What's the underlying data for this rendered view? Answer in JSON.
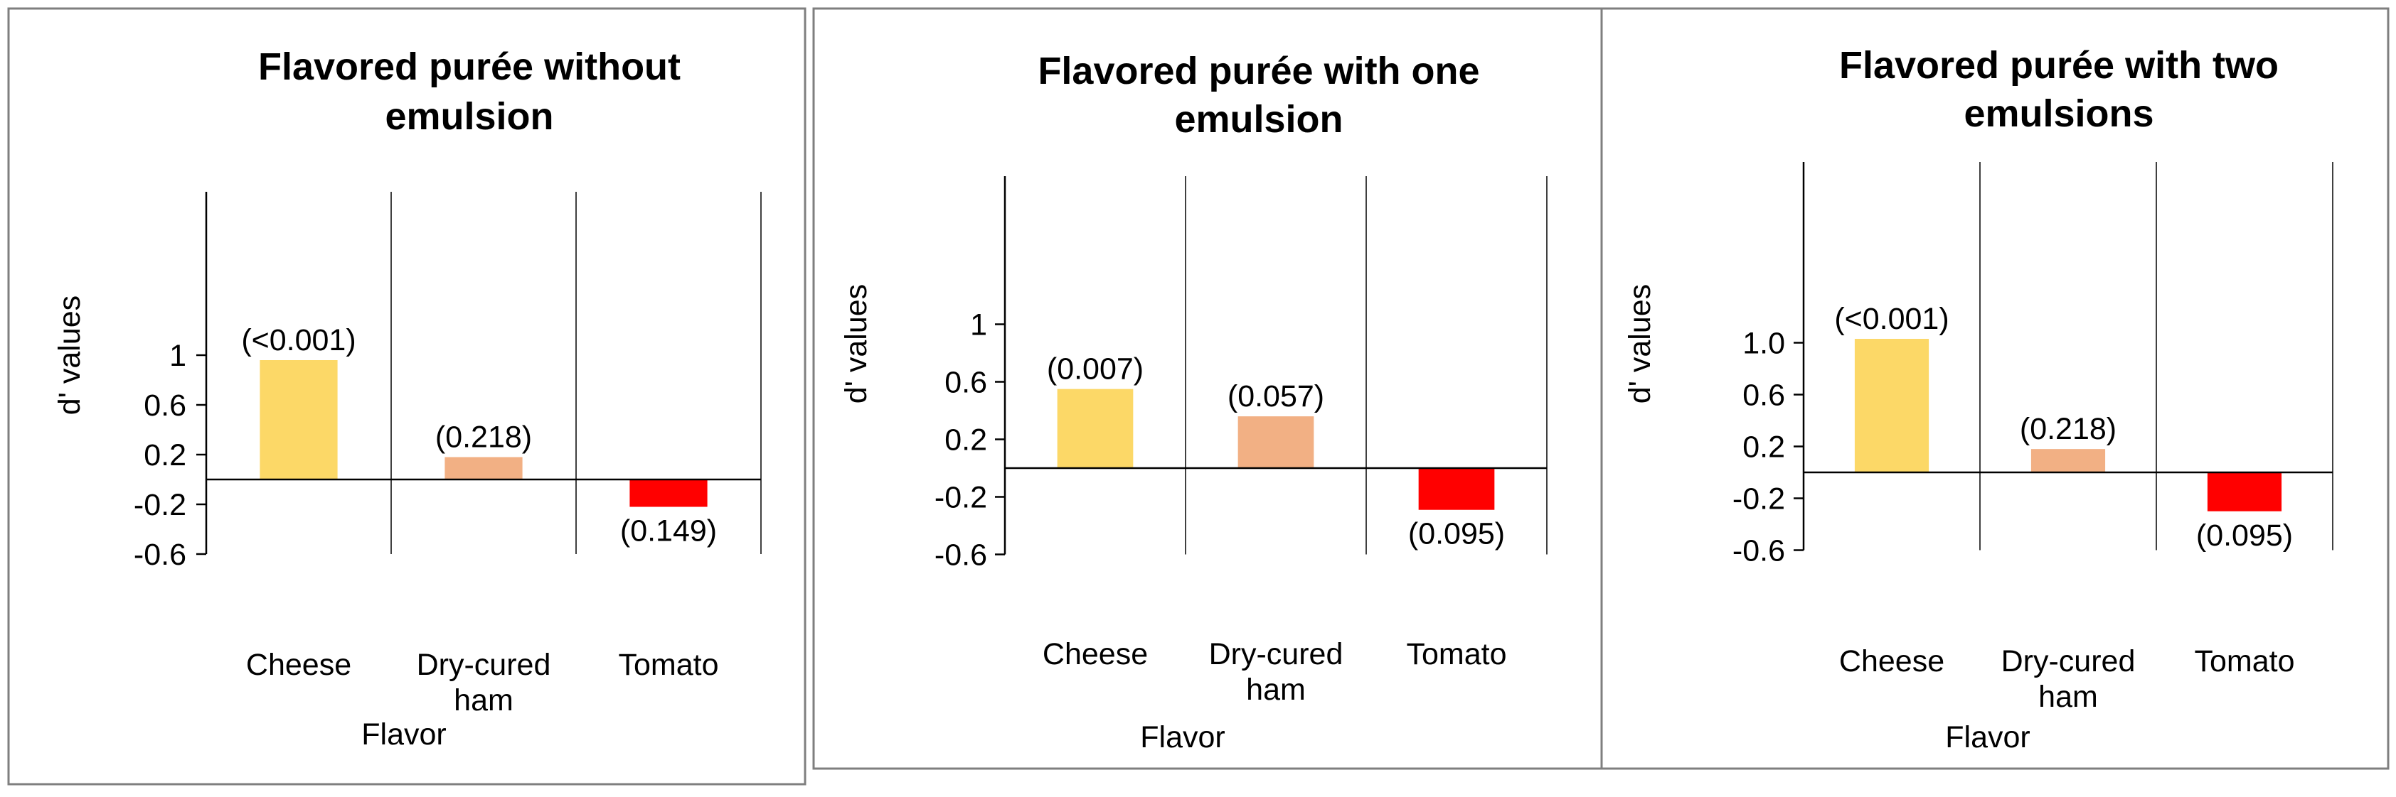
{
  "chart_data": [
    {
      "type": "bar",
      "title": "Flavored purée without emulsion",
      "title_lines": [
        "Flavored purée without",
        "emulsion"
      ],
      "xlabel": "Flavor",
      "ylabel": "d' values",
      "categories": [
        "Cheese",
        "Dry-cured ham",
        "Tomato"
      ],
      "category_lines": [
        [
          "Cheese"
        ],
        [
          "Dry-cured",
          "ham"
        ],
        [
          "Tomato"
        ]
      ],
      "values": [
        0.96,
        0.18,
        -0.22
      ],
      "data_labels": [
        "(<0.001)",
        "(0.218)",
        "(0.149)"
      ],
      "colors": [
        "#FCD867",
        "#F2B084",
        "#FF0000"
      ],
      "yticks": [
        1,
        0.6,
        0.2,
        -0.2,
        -0.6
      ],
      "ytick_labels": [
        "1",
        "0.6",
        "0.2",
        "-0.2",
        "-0.6"
      ],
      "ylim": [
        -0.6,
        1.2
      ]
    },
    {
      "type": "bar",
      "title": "Flavored purée with one emulsion",
      "title_lines": [
        "Flavored purée with one",
        "emulsion"
      ],
      "xlabel": "Flavor",
      "ylabel": "d' values",
      "categories": [
        "Cheese",
        "Dry-cured ham",
        "Tomato"
      ],
      "category_lines": [
        [
          "Cheese"
        ],
        [
          "Dry-cured",
          "ham"
        ],
        [
          "Tomato"
        ]
      ],
      "values": [
        0.55,
        0.36,
        -0.29
      ],
      "data_labels": [
        "(0.007)",
        "(0.057)",
        "(0.095)"
      ],
      "colors": [
        "#FCD867",
        "#F2B084",
        "#FF0000"
      ],
      "yticks": [
        1,
        0.6,
        0.2,
        -0.2,
        -0.6
      ],
      "ytick_labels": [
        "1",
        "0.6",
        "0.2",
        "-0.2",
        "-0.6"
      ],
      "ylim": [
        -0.6,
        1.2
      ]
    },
    {
      "type": "bar",
      "title": "Flavored purée with two emulsions",
      "title_lines": [
        "Flavored purée with two",
        "emulsions"
      ],
      "xlabel": "Flavor",
      "ylabel": "d' values",
      "categories": [
        "Cheese",
        "Dry-cured ham",
        "Tomato"
      ],
      "category_lines": [
        [
          "Cheese"
        ],
        [
          "Dry-cured",
          "ham"
        ],
        [
          "Tomato"
        ]
      ],
      "values": [
        1.03,
        0.18,
        -0.3
      ],
      "data_labels": [
        "(<0.001)",
        "(0.218)",
        "(0.095)"
      ],
      "colors": [
        "#FCD867",
        "#F2B084",
        "#FF0000"
      ],
      "yticks": [
        1.0,
        0.6,
        0.2,
        -0.2,
        -0.6
      ],
      "ytick_labels": [
        "1.0",
        "0.6",
        "0.2",
        "-0.2",
        "-0.6"
      ],
      "ylim": [
        -0.6,
        1.2
      ]
    }
  ]
}
